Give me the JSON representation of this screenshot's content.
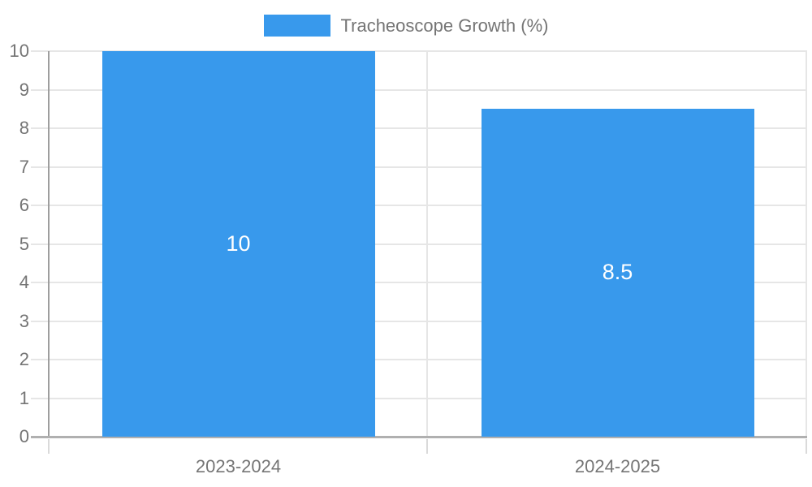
{
  "chart_data": {
    "type": "bar",
    "title": "",
    "legend": {
      "position": "top",
      "label": "Tracheoscope Growth (%)"
    },
    "categories": [
      "2023-2024",
      "2024-2025"
    ],
    "series": [
      {
        "name": "Tracheoscope Growth (%)",
        "values": [
          10,
          8.5
        ],
        "data_labels": [
          "10",
          "8.5"
        ]
      }
    ],
    "xlabel": "",
    "ylabel": "",
    "ylim": [
      0,
      10
    ],
    "ytick_step": 1,
    "grid": true,
    "colors": {
      "bar": "#3899EC",
      "axis_text": "#757575",
      "gridline": "#E6E6E6",
      "y_axis_line": "#9E9E9E",
      "baseline": "#B0B0B0",
      "below_axis_tick": "#DADADA",
      "data_label_text": "#FFFFFF"
    }
  }
}
